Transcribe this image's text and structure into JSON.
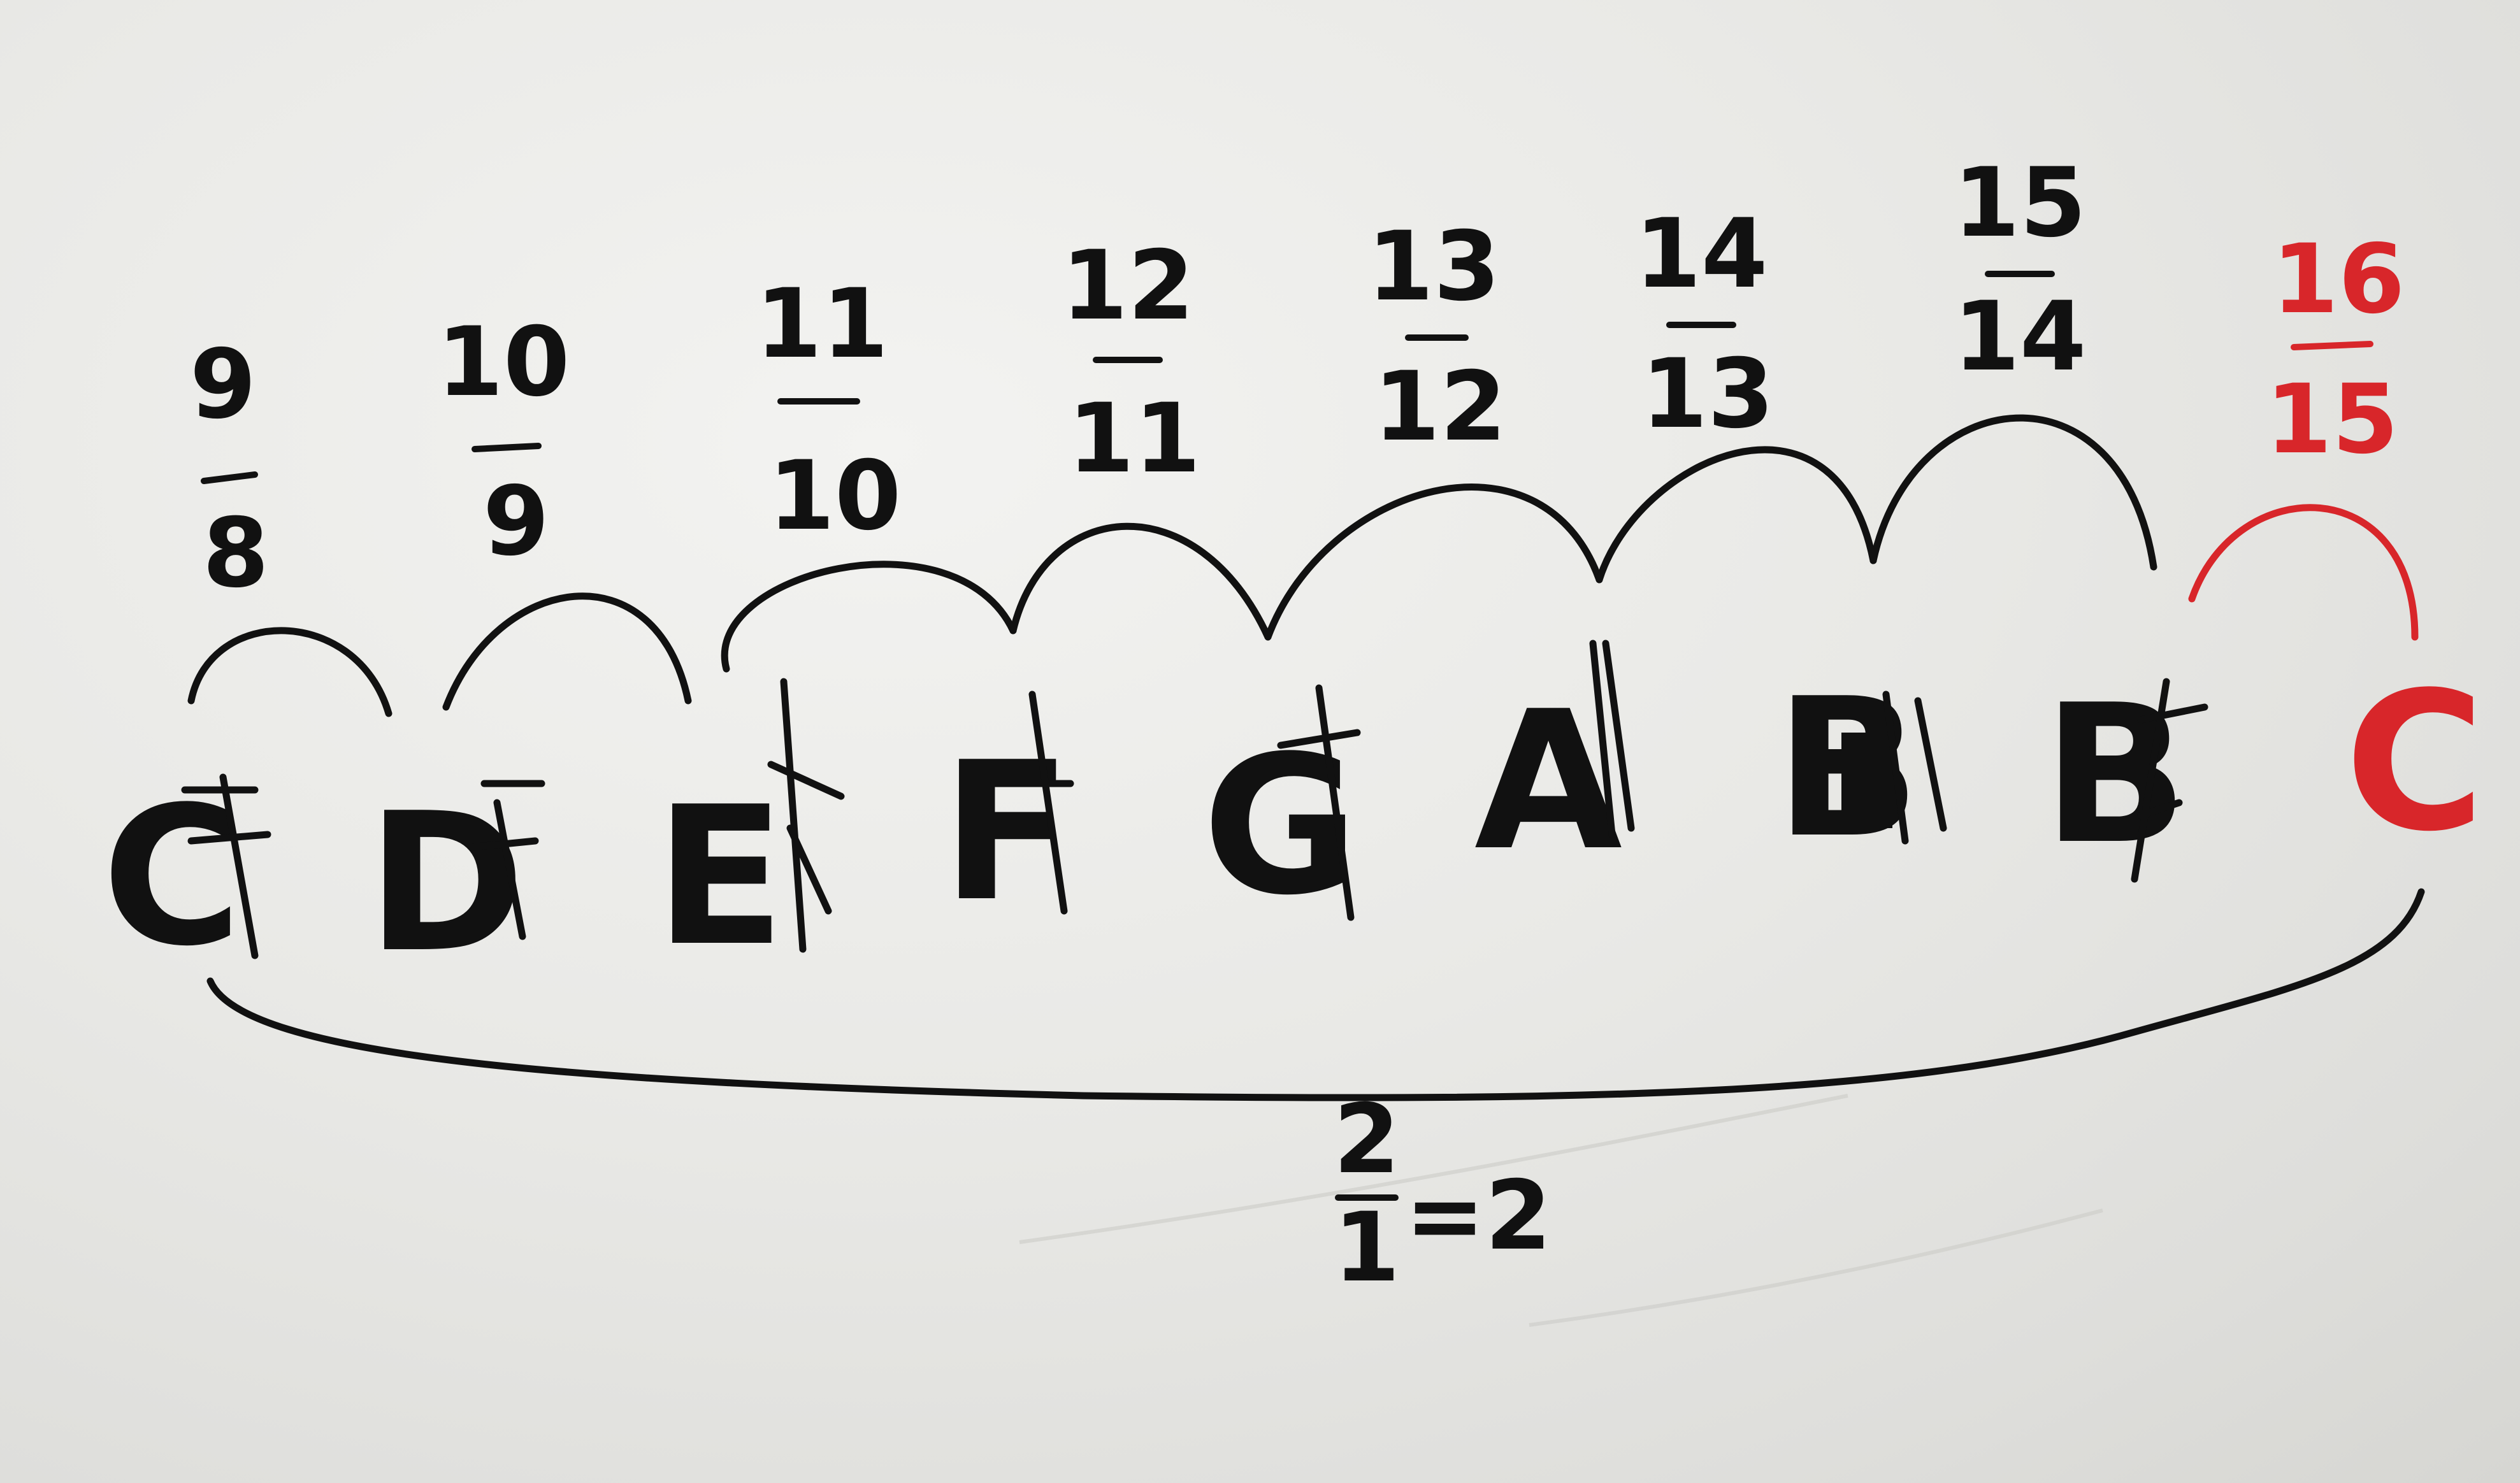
{
  "whiteboard": {
    "notes": [
      {
        "label": "C",
        "color": "#111111"
      },
      {
        "label": "D",
        "color": "#111111"
      },
      {
        "label": "E",
        "color": "#111111"
      },
      {
        "label": "F",
        "color": "#111111"
      },
      {
        "label": "G",
        "color": "#111111"
      },
      {
        "label": "A",
        "color": "#111111"
      },
      {
        "label": "B",
        "color": "#111111"
      },
      {
        "label": "B",
        "color": "#111111"
      },
      {
        "label": "C",
        "color": "#d8262a"
      }
    ],
    "ratios": [
      {
        "num": "9",
        "den": "8",
        "color": "#111111"
      },
      {
        "num": "10",
        "den": "9",
        "color": "#111111"
      },
      {
        "num": "11",
        "den": "10",
        "color": "#111111"
      },
      {
        "num": "12",
        "den": "11",
        "color": "#111111"
      },
      {
        "num": "13",
        "den": "12",
        "color": "#111111"
      },
      {
        "num": "14",
        "den": "13",
        "color": "#111111"
      },
      {
        "num": "15",
        "den": "14",
        "color": "#111111"
      },
      {
        "num": "16",
        "den": "15",
        "color": "#d8262a"
      }
    ],
    "total": {
      "num": "2",
      "den": "1",
      "result": "=2"
    }
  }
}
